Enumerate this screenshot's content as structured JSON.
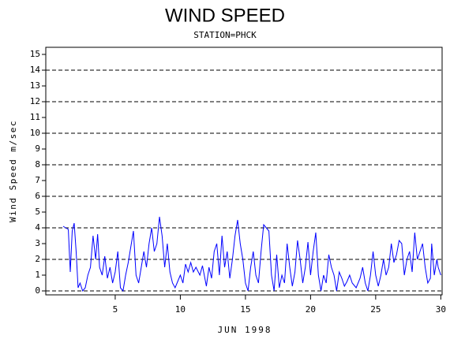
{
  "chart_data": {
    "type": "line",
    "title": "WIND SPEED",
    "subtitle": "STATION=PHCK",
    "x_label": "JUN 1998",
    "y_label": "Wind Speed m/sec",
    "color": "#0000ff",
    "xlim": [
      -0.33,
      30.1
    ],
    "xticks": [
      5,
      10,
      15,
      20,
      25,
      30
    ],
    "ylim": [
      -0.25,
      15.45
    ],
    "yticks": [
      0,
      1,
      2,
      3,
      4,
      5,
      6,
      7,
      8,
      9,
      10,
      11,
      12,
      13,
      14,
      15
    ],
    "grid_values": [
      0,
      2,
      4,
      6,
      8,
      10,
      12,
      14
    ],
    "x": [
      1.0,
      1.2,
      1.4,
      1.55,
      1.7,
      1.85,
      2.0,
      2.15,
      2.3,
      2.5,
      2.7,
      2.9,
      3.1,
      3.3,
      3.5,
      3.65,
      3.8,
      4.0,
      4.2,
      4.4,
      4.6,
      4.8,
      5.0,
      5.2,
      5.4,
      5.6,
      5.8,
      6.0,
      6.2,
      6.4,
      6.6,
      6.8,
      7.0,
      7.2,
      7.4,
      7.6,
      7.8,
      8.0,
      8.2,
      8.4,
      8.6,
      8.8,
      9.0,
      9.2,
      9.4,
      9.6,
      9.8,
      10.0,
      10.2,
      10.4,
      10.6,
      10.8,
      11.0,
      11.2,
      11.5,
      11.7,
      12.0,
      12.2,
      12.4,
      12.6,
      12.8,
      13.0,
      13.2,
      13.4,
      13.6,
      13.8,
      14.0,
      14.2,
      14.4,
      14.6,
      14.8,
      15.0,
      15.2,
      15.4,
      15.6,
      15.8,
      16.0,
      16.2,
      16.4,
      16.6,
      16.8,
      17.0,
      17.2,
      17.4,
      17.6,
      17.8,
      18.0,
      18.2,
      18.4,
      18.6,
      18.8,
      19.0,
      19.2,
      19.4,
      19.6,
      19.8,
      20.0,
      20.2,
      20.4,
      20.6,
      20.8,
      21.0,
      21.2,
      21.4,
      21.6,
      21.8,
      22.0,
      22.2,
      22.4,
      22.6,
      22.8,
      23.0,
      23.2,
      23.5,
      23.8,
      24.0,
      24.2,
      24.4,
      24.6,
      24.8,
      25.0,
      25.2,
      25.4,
      25.6,
      25.8,
      26.0,
      26.2,
      26.4,
      26.6,
      26.8,
      27.0,
      27.2,
      27.4,
      27.6,
      27.8,
      28.0,
      28.2,
      28.4,
      28.6,
      28.8,
      29.0,
      29.2,
      29.3,
      29.5,
      29.7,
      29.8,
      30.0
    ],
    "values": [
      4.1,
      4.0,
      3.9,
      1.2,
      3.8,
      4.3,
      2.5,
      0.2,
      0.5,
      0,
      0.2,
      1.0,
      1.5,
      3.5,
      2.0,
      3.6,
      1.5,
      1.0,
      2.2,
      0.8,
      1.5,
      0.5,
      1.2,
      2.5,
      0.2,
      0,
      1.0,
      1.8,
      2.8,
      3.8,
      1.0,
      0.5,
      1.5,
      2.5,
      1.5,
      3.0,
      4.0,
      2.5,
      3.0,
      4.7,
      3.5,
      1.5,
      3.0,
      1.2,
      0.5,
      0.2,
      0.6,
      1.0,
      0.5,
      1.7,
      1.2,
      1.8,
      1.2,
      1.5,
      1.0,
      1.6,
      0.3,
      1.5,
      0.8,
      2.5,
      3.0,
      1.0,
      3.5,
      1.5,
      2.5,
      0.8,
      2.0,
      3.5,
      4.5,
      3.0,
      2.0,
      0.5,
      0,
      1.5,
      2.5,
      1.0,
      0.5,
      2.5,
      4.2,
      4.0,
      3.8,
      1.0,
      0,
      2.3,
      0.2,
      1.0,
      0.5,
      3.0,
      1.5,
      0.3,
      1.2,
      3.2,
      2.0,
      0.5,
      1.5,
      3.1,
      1.0,
      2.5,
      3.7,
      1.0,
      0,
      1.0,
      0.5,
      2.3,
      1.5,
      1.0,
      0,
      1.2,
      0.8,
      0.3,
      0.6,
      1.0,
      0.5,
      0.2,
      0.8,
      1.5,
      0.5,
      0,
      1.0,
      2.5,
      1.0,
      0.3,
      1.0,
      2.0,
      1.0,
      1.5,
      3.0,
      1.8,
      2.3,
      3.2,
      3.0,
      1.0,
      2.0,
      2.5,
      1.2,
      3.7,
      2.0,
      2.5,
      3.0,
      1.5,
      0.5,
      0.8,
      3.0,
      1.0,
      2.0,
      1.5,
      1.0
    ]
  }
}
